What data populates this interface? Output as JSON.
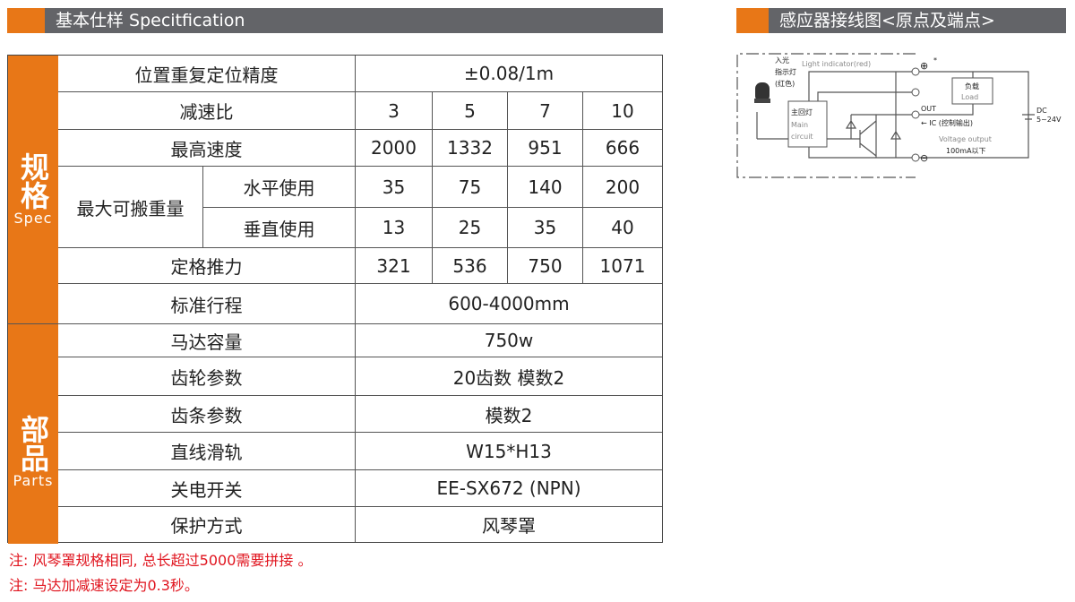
{
  "left_header": {
    "title": "基本仕样 Specitfication"
  },
  "right_header": {
    "title": "感应器接线图<原点及端点>"
  },
  "table": {
    "spec_group": {
      "zh": "规格",
      "en": "Spec"
    },
    "parts_group": {
      "zh": "部品",
      "en": "Parts"
    },
    "rows": {
      "precision": {
        "label": "位置重复定位精度",
        "value": "±0.08/1m"
      },
      "ratio": {
        "label": "减速比",
        "values": [
          "3",
          "5",
          "7",
          "10"
        ]
      },
      "speed": {
        "label": "最高速度",
        "values": [
          "2000",
          "1332",
          "951",
          "666"
        ]
      },
      "load": {
        "label": "最大可搬重量",
        "horizontal": {
          "label": "水平使用",
          "values": [
            "35",
            "75",
            "140",
            "200"
          ]
        },
        "vertical": {
          "label": "垂直使用",
          "values": [
            "13",
            "25",
            "35",
            "40"
          ]
        }
      },
      "thrust": {
        "label": "定格推力",
        "values": [
          "321",
          "536",
          "750",
          "1071"
        ]
      },
      "stroke": {
        "label": "标准行程",
        "value": "600-4000mm"
      },
      "motor": {
        "label": "马达容量",
        "value": "750w"
      },
      "gear": {
        "label": "齿轮参数",
        "value": "20齿数  模数2"
      },
      "rack": {
        "label": "齿条参数",
        "value": "模数2"
      },
      "rail": {
        "label": "直线滑轨",
        "value": "W15*H13"
      },
      "switch": {
        "label": "关电开关",
        "value": "EE-SX672 (NPN)"
      },
      "protection": {
        "label": "保护方式",
        "value": "风琴罩"
      }
    }
  },
  "notes": [
    "注: 风琴罩规格相同, 总长超过5000需要拼接 。",
    "注: 马达加减速设定为0.3秒。"
  ],
  "diagram": {
    "light_indicator": "Light indicator(red)",
    "led_label": [
      "入光",
      "指示灯",
      "(红色)"
    ],
    "main_circuit": [
      "主回灯",
      "Main",
      "circuit"
    ],
    "load": [
      "负载",
      "Load"
    ],
    "out": "OUT",
    "ic": "← IC (控制输出)",
    "voltage_output": "Voltage output",
    "current": "100mA以下",
    "dc": [
      "DC",
      "5~24V"
    ],
    "plus": "⊕",
    "minus": "⊖",
    "star": "*"
  },
  "colors": {
    "accent": "#e87717",
    "header_gray": "#636468",
    "note_red": "#e0141e"
  }
}
